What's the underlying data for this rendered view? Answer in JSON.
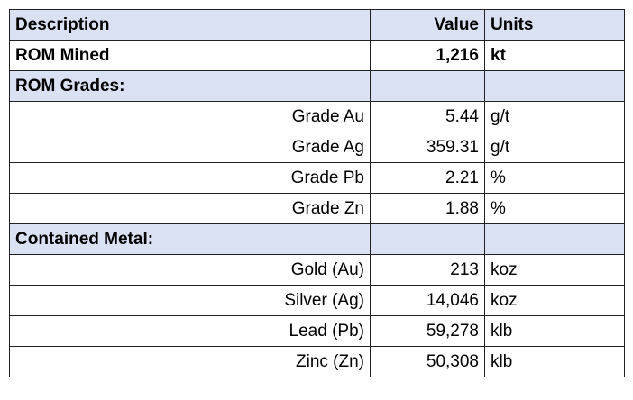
{
  "table": {
    "header": [
      "Description",
      "Value",
      "Units"
    ],
    "rows": [
      {
        "description": "ROM Mined",
        "value": "1,216",
        "units": "kt",
        "style": "bold"
      },
      {
        "description": "ROM Grades:",
        "style": "section"
      },
      {
        "description": "Grade Au",
        "value": "5.44",
        "units": "g/t"
      },
      {
        "description": "Grade Ag",
        "value": "359.31",
        "units": "g/t"
      },
      {
        "description": "Grade Pb",
        "value": "2.21",
        "units": "%"
      },
      {
        "description": "Grade Zn",
        "value": "1.88",
        "units": "%"
      },
      {
        "description": "Contained Metal:",
        "style": "section"
      },
      {
        "description": "Gold (Au)",
        "value": "213",
        "units": "koz"
      },
      {
        "description": "Silver (Ag)",
        "value": "14,046",
        "units": "koz"
      },
      {
        "description": "Lead (Pb)",
        "value": "59,278",
        "units": "klb"
      },
      {
        "description": "Zinc (Zn)",
        "value": "50,308",
        "units": "klb"
      }
    ]
  }
}
